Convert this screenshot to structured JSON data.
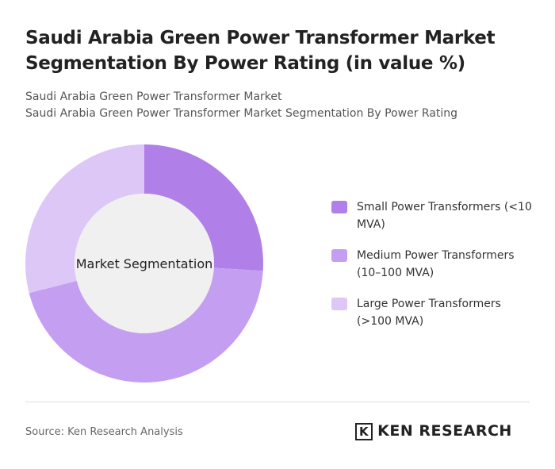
{
  "chart_data": {
    "type": "donut",
    "title": "Saudi Arabia Green Power Transformer Market Segmentation By Power Rating (in value %)",
    "subtitle": [
      "Saudi Arabia Green Power Transformer Market",
      "Saudi Arabia Green Power Transformer Market Segmentation By Power Rating"
    ],
    "center_label": "Market Segmentation",
    "categories": [
      "Small Power Transformers (<10 MVA)",
      "Medium Power Transformers (10–100 MVA)",
      "Large Power Transformers (>100 MVA)"
    ],
    "values": [
      26,
      45,
      29
    ],
    "colors": [
      "#b07fe8",
      "#c49ef1",
      "#dcc7f7"
    ],
    "source": "Source: Ken Research Analysis",
    "logo": "KEN RESEARCH"
  }
}
